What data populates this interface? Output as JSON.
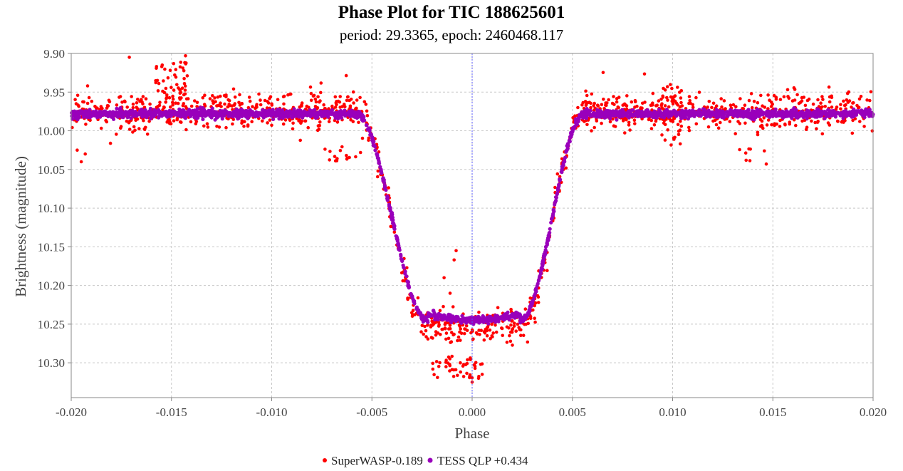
{
  "chart_data": {
    "type": "scatter",
    "title": "Phase Plot for TIC 188625601",
    "subtitle": "period: 29.3365, epoch: 2460468.117",
    "xlabel": "Phase",
    "ylabel": "Brightness (magnitude)",
    "xlim": [
      -0.02,
      0.02
    ],
    "ylim": [
      9.9,
      10.345
    ],
    "y_inverted": true,
    "grid": true,
    "x_ticks": [
      "-0.020",
      "-0.015",
      "-0.010",
      "-0.005",
      "0.000",
      "0.005",
      "0.010",
      "0.015",
      "0.020"
    ],
    "x_tick_values": [
      -0.02,
      -0.015,
      -0.01,
      -0.005,
      0.0,
      0.005,
      0.01,
      0.015,
      0.02
    ],
    "y_ticks": [
      "9.90",
      "9.95",
      "10.00",
      "10.05",
      "10.10",
      "10.15",
      "10.20",
      "10.25",
      "10.30"
    ],
    "y_tick_values": [
      9.9,
      9.95,
      10.0,
      10.05,
      10.1,
      10.15,
      10.2,
      10.25,
      10.3
    ],
    "reference_line_x": 0.0,
    "legend_position": "bottom-center",
    "series": [
      {
        "name": "SuperWASP-0.189",
        "color": "#ff0000",
        "model": {
          "baseline": 9.975,
          "depth": 10.255,
          "ingress_start": -0.0058,
          "bottom_start": -0.0022,
          "bottom_end": 0.0024,
          "egress_end": 0.0056,
          "scatter": 0.012,
          "count": 1300
        },
        "clusters": [
          {
            "x": [
              -0.0158,
              -0.0142
            ],
            "y": [
              9.91,
              9.96
            ],
            "count": 45
          },
          {
            "x": [
              -0.0075,
              -0.0055
            ],
            "y": [
              10.02,
              10.04
            ],
            "count": 15
          },
          {
            "x": [
              -0.002,
              0.0005
            ],
            "y": [
              10.29,
              10.32
            ],
            "count": 45
          },
          {
            "x": [
              0.0095,
              0.0105
            ],
            "y": [
              9.94,
              9.96
            ],
            "count": 15
          },
          {
            "x": [
              0.0095,
              0.0105
            ],
            "y": [
              9.98,
              10.02
            ],
            "count": 15
          },
          {
            "x": [
              0.0133,
              0.0148
            ],
            "y": [
              10.02,
              10.045
            ],
            "count": 8
          }
        ],
        "extra_points": [
          [
            -0.0197,
            10.025
          ],
          [
            -0.0195,
            10.04
          ],
          [
            -0.0193,
            10.03
          ],
          [
            -0.0171,
            9.905
          ],
          [
            -0.0154,
            9.898
          ],
          [
            -0.0143,
            9.903
          ],
          [
            -0.0119,
            9.946
          ],
          [
            -0.0095,
            9.985
          ],
          [
            -0.0008,
            10.155
          ],
          [
            -0.0009,
            10.167
          ],
          [
            -0.0014,
            10.19
          ],
          [
            -0.0011,
            10.21
          ],
          [
            0.0,
            10.325
          ],
          [
            0.0005,
            10.315
          ]
        ]
      },
      {
        "name": "TESS QLP +0.434",
        "color": "#9900bb",
        "model": {
          "baseline": 9.978,
          "depth": 10.245,
          "ingress_start": -0.0058,
          "bottom_start": -0.0022,
          "bottom_end": 0.0024,
          "egress_end": 0.0056,
          "scatter": 0.0025,
          "count": 2600
        }
      }
    ]
  }
}
